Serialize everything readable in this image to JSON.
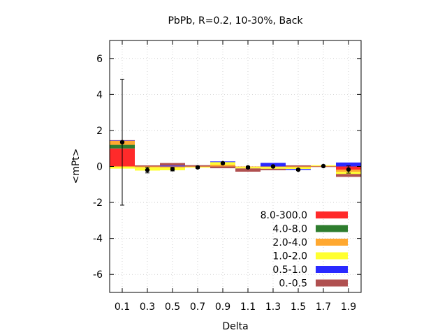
{
  "chart_data": {
    "type": "bar",
    "title": "PbPb, R=0.2, 10-30%, Back",
    "xlabel": "Delta",
    "ylabel": "<mPt>",
    "xlim": [
      0,
      2.0
    ],
    "ylim": [
      -7,
      7
    ],
    "grid": true,
    "legend_position": "bottom-right",
    "x_ticks": [
      {
        "value": 0.1,
        "label": "0.1"
      },
      {
        "value": 0.3,
        "label": "0.3"
      },
      {
        "value": 0.5,
        "label": "0.5"
      },
      {
        "value": 0.7,
        "label": "0.7"
      },
      {
        "value": 0.9,
        "label": "0.9"
      },
      {
        "value": 1.1,
        "label": "1.1"
      },
      {
        "value": 1.3,
        "label": "1.3"
      },
      {
        "value": 1.5,
        "label": "1.5"
      },
      {
        "value": 1.7,
        "label": "1.7"
      },
      {
        "value": 1.9,
        "label": "1.9"
      }
    ],
    "y_ticks": [
      {
        "value": 6,
        "label": "6"
      },
      {
        "value": 4,
        "label": "4"
      },
      {
        "value": 2,
        "label": "2"
      },
      {
        "value": 0,
        "label": "0"
      },
      {
        "value": -2,
        "label": "-2"
      },
      {
        "value": -4,
        "label": "-4"
      },
      {
        "value": -6,
        "label": "-6"
      }
    ],
    "bin_width": 0.2,
    "categories": [
      0.1,
      0.3,
      0.5,
      0.7,
      0.9,
      1.1,
      1.3,
      1.5,
      1.7,
      1.9
    ],
    "series": [
      {
        "name": "8.0-300.0",
        "color": "#ff2a2a",
        "values": [
          1.0,
          0.0,
          0.0,
          0.0,
          0.0,
          0.0,
          0.0,
          0.0,
          0.0,
          -0.18
        ]
      },
      {
        "name": "4.0-8.0",
        "color": "#2e7d2e",
        "values": [
          0.2,
          0.0,
          0.0,
          0.0,
          0.0,
          0.0,
          0.0,
          0.0,
          0.0,
          0.0
        ]
      },
      {
        "name": "2.0-4.0",
        "color": "#ffa830",
        "values": [
          0.22,
          -0.05,
          -0.06,
          -0.03,
          0.1,
          -0.03,
          -0.03,
          -0.04,
          0.03,
          -0.12
        ]
      },
      {
        "name": "1.0-2.0",
        "color": "#ffff30",
        "values": [
          -0.12,
          -0.18,
          -0.15,
          -0.04,
          0.14,
          -0.08,
          -0.1,
          -0.1,
          0.04,
          -0.12
        ]
      },
      {
        "name": "0.5-1.0",
        "color": "#2a2aff",
        "values": [
          0.02,
          0.0,
          0.05,
          0.0,
          0.04,
          0.0,
          0.2,
          -0.05,
          0.0,
          0.22
        ]
      },
      {
        "name": "0.-0.5",
        "color": "#b05050",
        "values": [
          0.02,
          0.06,
          0.14,
          0.07,
          -0.1,
          -0.18,
          -0.08,
          0.06,
          -0.03,
          -0.16
        ]
      }
    ],
    "total": {
      "values": [
        1.35,
        -0.2,
        -0.15,
        -0.05,
        0.18,
        -0.05,
        0.0,
        -0.18,
        0.02,
        -0.17
      ],
      "errors": [
        3.5,
        0.16,
        0.1,
        0.06,
        0.05,
        0.06,
        0.05,
        0.05,
        0.04,
        0.2
      ]
    }
  }
}
